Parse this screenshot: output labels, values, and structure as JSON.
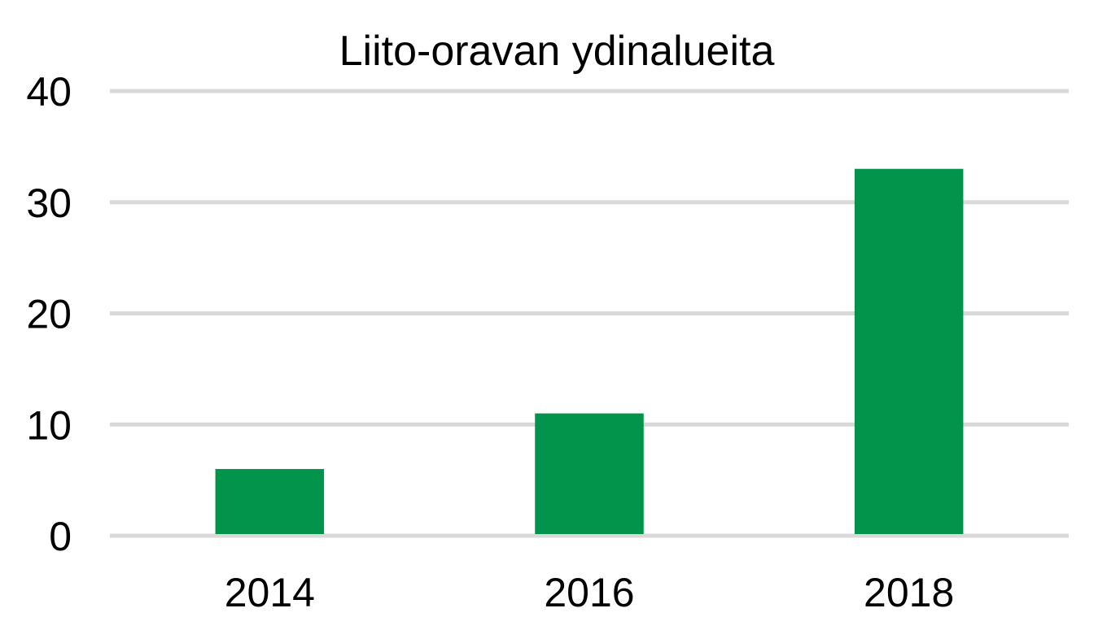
{
  "chart_data": {
    "type": "bar",
    "title": "Liito-oravan ydinalueita",
    "xlabel": "",
    "ylabel": "",
    "categories": [
      "2014",
      "2016",
      "2018"
    ],
    "values": [
      6,
      11,
      33
    ],
    "ylim": [
      0,
      40
    ],
    "yticks": [
      "0",
      "10",
      "20",
      "30",
      "40"
    ],
    "grid": true,
    "legend": "none",
    "colors": {
      "bar": "#03944c",
      "grid": "#d9d9d9",
      "text": "#000000"
    }
  }
}
